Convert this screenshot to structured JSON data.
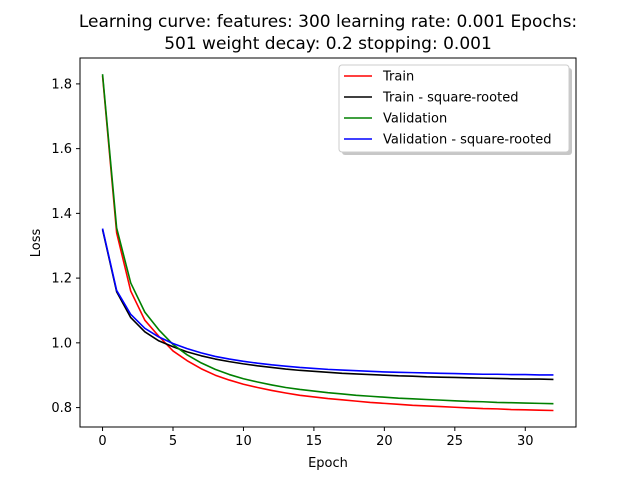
{
  "chart_data": {
    "type": "line",
    "title_lines": [
      "Learning curve: features: 300 learning rate: 0.001 Epochs:",
      "501 weight decay: 0.2 stopping: 0.001"
    ],
    "xlabel": "Epoch",
    "ylabel": "Loss",
    "xlim": [
      -1.6,
      33.6
    ],
    "ylim": [
      0.74,
      1.88
    ],
    "xticks": [
      0,
      5,
      10,
      15,
      20,
      25,
      30
    ],
    "yticks": [
      0.8,
      1.0,
      1.2,
      1.4,
      1.6,
      1.8
    ],
    "ytick_labels": [
      "0.8",
      "1.0",
      "1.2",
      "1.4",
      "1.6",
      "1.8"
    ],
    "grid": false,
    "legend_position": "upper-right",
    "x": [
      0,
      1,
      2,
      3,
      4,
      5,
      6,
      7,
      8,
      9,
      10,
      11,
      12,
      13,
      14,
      15,
      16,
      17,
      18,
      19,
      20,
      21,
      22,
      23,
      24,
      25,
      26,
      27,
      28,
      29,
      30,
      31,
      32
    ],
    "series": [
      {
        "name": "Train",
        "color": "#ff0000",
        "values": [
          1.825,
          1.34,
          1.16,
          1.07,
          1.02,
          0.975,
          0.945,
          0.92,
          0.9,
          0.885,
          0.872,
          0.862,
          0.853,
          0.845,
          0.838,
          0.833,
          0.828,
          0.824,
          0.82,
          0.816,
          0.813,
          0.81,
          0.807,
          0.805,
          0.803,
          0.801,
          0.799,
          0.797,
          0.796,
          0.794,
          0.793,
          0.792,
          0.791
        ]
      },
      {
        "name": "Train - square-rooted",
        "color": "#000000",
        "values": [
          1.35,
          1.158,
          1.078,
          1.034,
          1.006,
          0.988,
          0.972,
          0.96,
          0.95,
          0.942,
          0.935,
          0.929,
          0.924,
          0.919,
          0.915,
          0.912,
          0.909,
          0.906,
          0.904,
          0.902,
          0.9,
          0.898,
          0.897,
          0.895,
          0.894,
          0.893,
          0.892,
          0.891,
          0.89,
          0.889,
          0.888,
          0.888,
          0.887
        ]
      },
      {
        "name": "Validation",
        "color": "#008000",
        "values": [
          1.83,
          1.355,
          1.185,
          1.095,
          1.04,
          0.995,
          0.963,
          0.938,
          0.918,
          0.902,
          0.889,
          0.879,
          0.87,
          0.862,
          0.856,
          0.851,
          0.846,
          0.842,
          0.838,
          0.835,
          0.832,
          0.829,
          0.827,
          0.825,
          0.823,
          0.821,
          0.819,
          0.818,
          0.816,
          0.815,
          0.814,
          0.813,
          0.812
        ]
      },
      {
        "name": "Validation - square-rooted",
        "color": "#0000ff",
        "values": [
          1.353,
          1.162,
          1.088,
          1.045,
          1.018,
          0.998,
          0.982,
          0.969,
          0.958,
          0.95,
          0.943,
          0.937,
          0.932,
          0.928,
          0.924,
          0.921,
          0.918,
          0.916,
          0.914,
          0.912,
          0.91,
          0.909,
          0.908,
          0.907,
          0.906,
          0.905,
          0.904,
          0.903,
          0.903,
          0.902,
          0.902,
          0.901,
          0.901
        ]
      }
    ]
  }
}
